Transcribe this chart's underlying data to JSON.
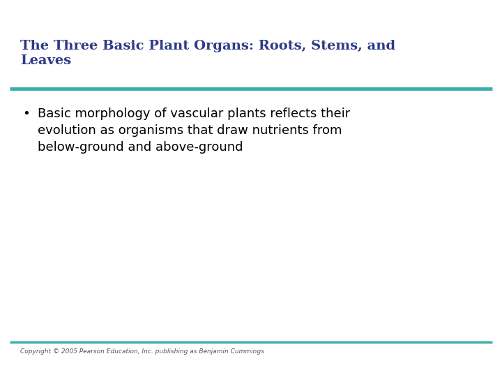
{
  "title_line1": "The Three Basic Plant Organs: Roots, Stems, and",
  "title_line2": "Leaves",
  "title_color": "#2E3A87",
  "separator_color": "#3AAFA9",
  "bullet_text_line1": "Basic morphology of vascular plants reflects their",
  "bullet_text_line2": "evolution as organisms that draw nutrients from",
  "bullet_text_line3": "below-ground and above-ground",
  "bullet_color": "#000000",
  "body_text_color": "#000000",
  "background_color": "#FFFFFF",
  "footer_text": "Copyright © 2005 Pearson Education, Inc. publishing as Benjamin Cummings",
  "footer_text_color": "#555555",
  "separator_color_footer": "#3AAFA9"
}
